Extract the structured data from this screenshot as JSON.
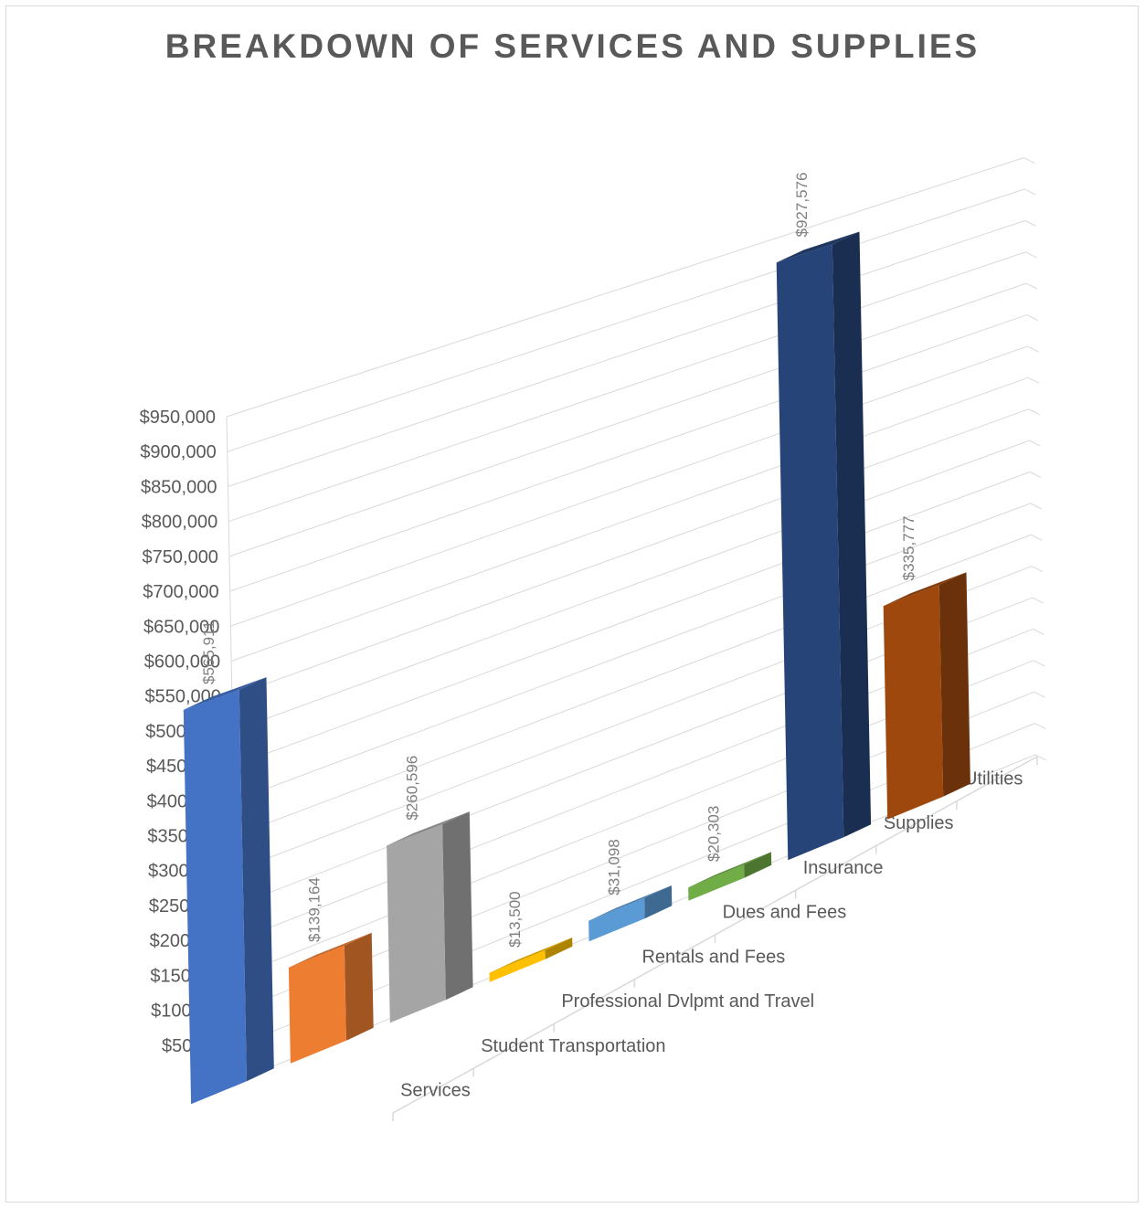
{
  "chart_data": {
    "type": "bar",
    "title": "BREAKDOWN OF SERVICES AND SUPPLIES",
    "categories": [
      "Services",
      "Student Transportation",
      "Professional Dvlpmt and Travel",
      "Rentals and Fees",
      "Dues and Fees",
      "Insurance",
      "Supplies",
      "Utilities"
    ],
    "values": [
      565911,
      139164,
      260596,
      13500,
      31098,
      20303,
      927576,
      335777
    ],
    "data_labels": [
      "$565,911",
      "$139,164",
      "$260,596",
      "$13,500",
      "$31,098",
      "$20,303",
      "$927,576",
      "$335,777"
    ],
    "colors": [
      "#4472c4",
      "#ed7d31",
      "#a5a5a5",
      "#ffc000",
      "#5b9bd5",
      "#70ad47",
      "#264478",
      "#9e480e"
    ],
    "ylim": [
      0,
      950000
    ],
    "y_ticks": [
      "$-",
      "$50,000",
      "$100,000",
      "$150,000",
      "$200,000",
      "$250,000",
      "$300,000",
      "$350,000",
      "$400,000",
      "$450,000",
      "$500,000",
      "$550,000",
      "$600,000",
      "$650,000",
      "$700,000",
      "$750,000",
      "$800,000",
      "$850,000",
      "$900,000",
      "$950,000"
    ],
    "xlabel": "",
    "ylabel": "",
    "grid": true,
    "legend": "none",
    "style": "3d-column"
  }
}
